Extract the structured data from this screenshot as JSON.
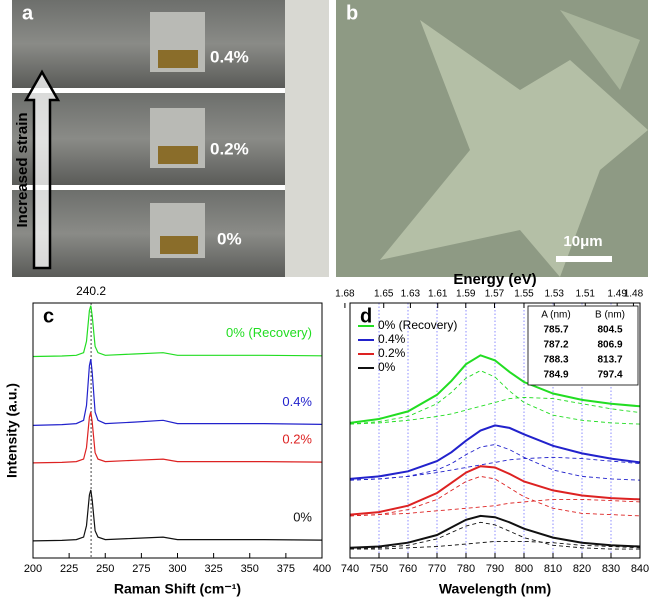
{
  "panel_a": {
    "label": "a",
    "strain_labels": [
      "0.4%",
      "0.2%",
      "0%"
    ],
    "arrow_label": "Increased strain"
  },
  "panel_b": {
    "label": "b",
    "scale_bar": "10μm"
  },
  "chart_data": [
    {
      "type": "line",
      "panel_label": "c",
      "xlabel": "Raman Shift (cm⁻¹)",
      "ylabel": "Intensity (a.u.)",
      "peak_position": 240.2,
      "x": [
        200,
        220,
        230,
        235,
        237,
        239,
        240,
        241,
        243,
        245,
        250,
        270,
        290,
        300,
        330,
        360,
        400
      ],
      "xlim": [
        200,
        400
      ],
      "xticks": [
        200,
        225,
        250,
        275,
        300,
        325,
        350,
        375,
        400
      ],
      "ylim": [
        0,
        10
      ],
      "series": [
        {
          "name": "0% (Recovery)",
          "color": "#22dd22",
          "values": [
            7.9,
            7.92,
            7.95,
            8.05,
            8.5,
            9.7,
            9.9,
            9.5,
            8.3,
            8.05,
            7.95,
            8.0,
            8.05,
            7.95,
            7.95,
            7.95,
            7.93
          ]
        },
        {
          "name": "0.4%",
          "color": "#2222cc",
          "values": [
            5.2,
            5.23,
            5.27,
            5.4,
            5.98,
            7.54,
            7.8,
            7.28,
            5.72,
            5.4,
            5.27,
            5.33,
            5.4,
            5.27,
            5.27,
            5.27,
            5.24
          ]
        },
        {
          "name": "0.2%",
          "color": "#dd2222",
          "values": [
            3.73,
            3.75,
            3.78,
            3.88,
            4.33,
            5.53,
            5.73,
            5.33,
            4.13,
            3.88,
            3.78,
            3.83,
            3.88,
            3.78,
            3.78,
            3.78,
            3.76
          ]
        },
        {
          "name": "0%",
          "color": "#111111",
          "values": [
            0.67,
            0.69,
            0.72,
            0.82,
            1.27,
            2.47,
            2.67,
            2.27,
            1.07,
            0.82,
            0.72,
            0.77,
            0.82,
            0.72,
            0.72,
            0.72,
            0.7
          ]
        }
      ]
    },
    {
      "type": "line",
      "panel_label": "d",
      "xlabel": "Wavelength (nm)",
      "x2label": "Energy (eV)",
      "x": [
        740,
        750,
        760,
        770,
        775,
        780,
        785,
        790,
        795,
        800,
        810,
        820,
        830,
        840
      ],
      "xlim": [
        740,
        840
      ],
      "xticks": [
        740,
        750,
        760,
        770,
        780,
        790,
        800,
        810,
        820,
        830,
        840
      ],
      "x2scale": "reciprocal",
      "x2lim": [
        1.676,
        1.476
      ],
      "x2ticks": [
        1.68,
        1.65,
        1.63,
        1.61,
        1.59,
        1.57,
        1.55,
        1.53,
        1.51,
        1.49,
        1.48
      ],
      "ylim": [
        0,
        10
      ],
      "grid": true,
      "grid_color": "#7070ff",
      "legend": "top-left",
      "table": {
        "columns": [
          "A (nm)",
          "B (nm)"
        ],
        "rows": [
          [
            785.7,
            804.5
          ],
          [
            787.2,
            806.9
          ],
          [
            788.3,
            813.7
          ],
          [
            784.9,
            797.4
          ]
        ]
      },
      "series": [
        {
          "name": "0% (Recovery)",
          "color": "#22dd22",
          "values": [
            5.3,
            5.45,
            5.75,
            6.4,
            6.95,
            7.6,
            7.95,
            7.75,
            7.3,
            6.9,
            6.45,
            6.2,
            6.05,
            5.95
          ],
          "peak_A": [
            5.25,
            5.35,
            5.55,
            6.05,
            6.5,
            7.05,
            7.35,
            7.1,
            6.55,
            6.1,
            5.6,
            5.4,
            5.3,
            5.25
          ],
          "peak_B": [
            5.25,
            5.3,
            5.4,
            5.55,
            5.65,
            5.8,
            5.95,
            6.1,
            6.25,
            6.3,
            6.25,
            6.05,
            5.85,
            5.7
          ]
        },
        {
          "name": "0.4%",
          "color": "#2222cc",
          "values": [
            3.1,
            3.2,
            3.4,
            3.8,
            4.15,
            4.6,
            5.0,
            5.2,
            5.1,
            4.85,
            4.4,
            4.1,
            3.9,
            3.75
          ],
          "peak_A": [
            3.05,
            3.1,
            3.2,
            3.45,
            3.7,
            4.05,
            4.35,
            4.45,
            4.25,
            3.95,
            3.45,
            3.2,
            3.1,
            3.05
          ],
          "peak_B": [
            3.05,
            3.1,
            3.2,
            3.35,
            3.45,
            3.55,
            3.65,
            3.75,
            3.85,
            3.9,
            3.95,
            3.9,
            3.8,
            3.7
          ]
        },
        {
          "name": "0.2%",
          "color": "#dd2222",
          "values": [
            1.7,
            1.8,
            2.05,
            2.55,
            2.95,
            3.35,
            3.6,
            3.55,
            3.3,
            3.0,
            2.65,
            2.45,
            2.35,
            2.3
          ],
          "peak_A": [
            1.65,
            1.7,
            1.9,
            2.3,
            2.65,
            3.0,
            3.2,
            3.1,
            2.75,
            2.4,
            1.95,
            1.75,
            1.7,
            1.65
          ],
          "peak_B": [
            1.65,
            1.7,
            1.75,
            1.85,
            1.9,
            1.95,
            2.0,
            2.05,
            2.15,
            2.2,
            2.3,
            2.3,
            2.25,
            2.2
          ]
        },
        {
          "name": "0%",
          "color": "#111111",
          "values": [
            0.4,
            0.45,
            0.6,
            0.9,
            1.2,
            1.5,
            1.65,
            1.6,
            1.4,
            1.15,
            0.8,
            0.6,
            0.5,
            0.45
          ],
          "peak_A": [
            0.35,
            0.4,
            0.5,
            0.75,
            1.0,
            1.25,
            1.4,
            1.3,
            1.05,
            0.8,
            0.5,
            0.4,
            0.35,
            0.35
          ],
          "peak_B": [
            0.35,
            0.35,
            0.4,
            0.45,
            0.5,
            0.55,
            0.6,
            0.65,
            0.65,
            0.65,
            0.6,
            0.5,
            0.45,
            0.4
          ]
        }
      ]
    }
  ]
}
